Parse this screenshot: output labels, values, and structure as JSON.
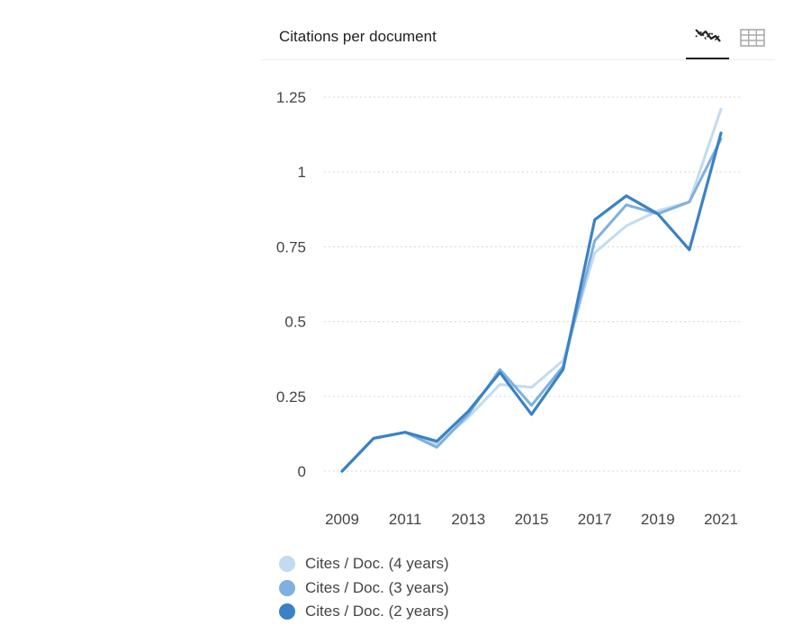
{
  "card": {
    "title": "Citations per document",
    "view_buttons": [
      {
        "icon": "line-chart-icon",
        "active": true
      },
      {
        "icon": "table-grid-icon",
        "active": false
      }
    ]
  },
  "chart_data": {
    "type": "line",
    "title": "Citations per document",
    "xlabel": "",
    "ylabel": "",
    "x": [
      2009,
      2010,
      2011,
      2012,
      2013,
      2014,
      2015,
      2016,
      2017,
      2018,
      2019,
      2020,
      2021
    ],
    "x_tick_labels": [
      "2009",
      "2011",
      "2013",
      "2015",
      "2017",
      "2019",
      "2021"
    ],
    "y_tick_labels": [
      "0",
      "0.25",
      "0.5",
      "0.75",
      "1",
      "1.25"
    ],
    "ylim": [
      0,
      1.25
    ],
    "grid": true,
    "legend_position": "bottom-left",
    "series": [
      {
        "name": "Cites / Doc. (4 years)",
        "color": "#c2dbf0",
        "values": [
          0,
          0.11,
          0.13,
          0.09,
          0.18,
          0.29,
          0.28,
          0.37,
          0.73,
          0.82,
          0.87,
          0.9,
          1.21
        ]
      },
      {
        "name": "Cites / Doc. (3 years)",
        "color": "#7fb0de",
        "values": [
          0,
          0.11,
          0.13,
          0.08,
          0.19,
          0.34,
          0.22,
          0.35,
          0.77,
          0.89,
          0.86,
          0.9,
          1.11
        ]
      },
      {
        "name": "Cites / Doc. (2 years)",
        "color": "#3a82c5",
        "values": [
          0,
          0.11,
          0.13,
          0.1,
          0.2,
          0.33,
          0.19,
          0.34,
          0.84,
          0.92,
          0.86,
          0.74,
          1.13
        ]
      }
    ]
  }
}
